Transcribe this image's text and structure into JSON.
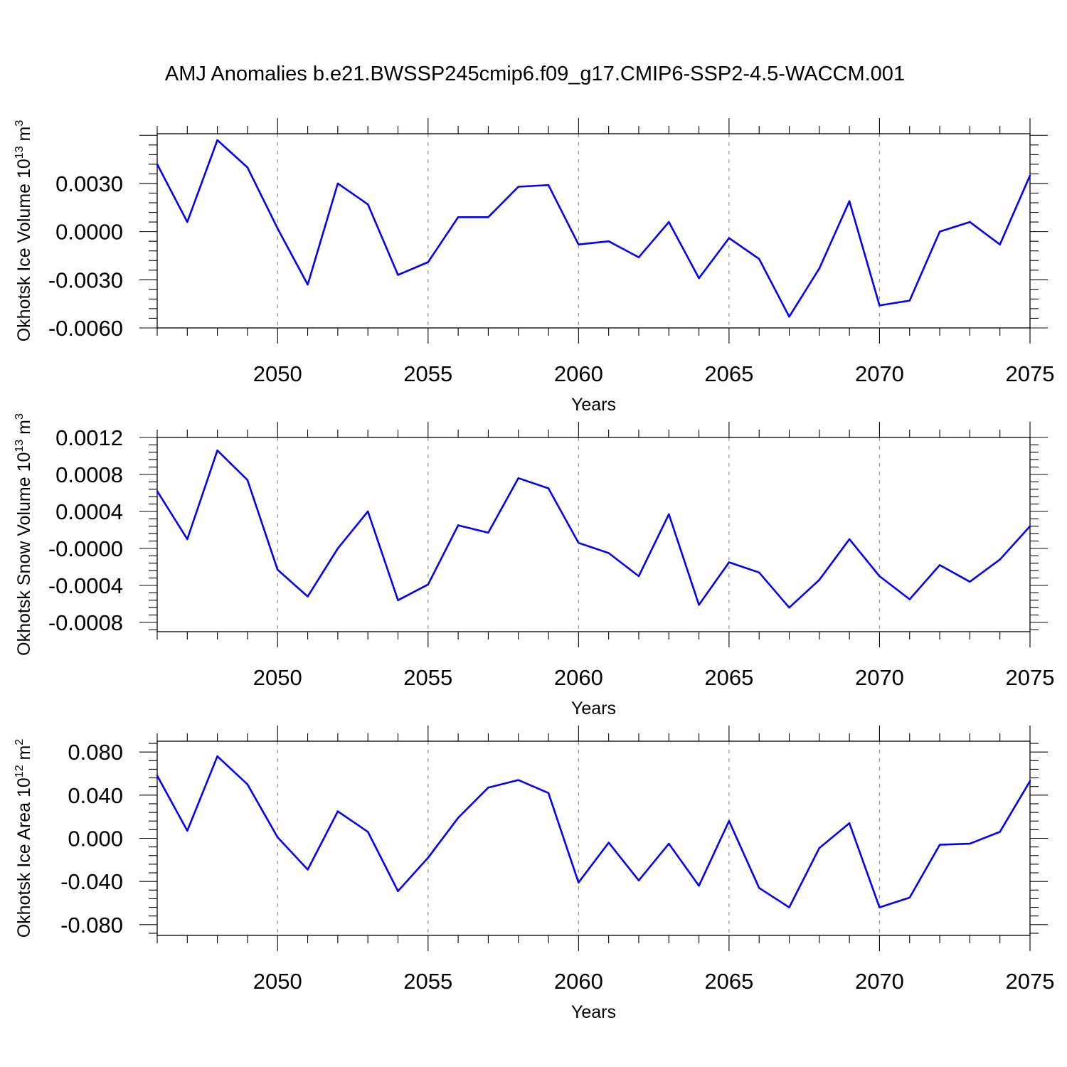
{
  "title": "AMJ Anomalies b.e21.BWSSP245cmip6.f09_g17.CMIP6-SSP2-4.5-WACCM.001",
  "line_color": "#0000ff",
  "grid_color": "#999999",
  "chart_data": [
    {
      "type": "line",
      "ylabel_main": "Okhotsk Ice Volume 10",
      "ylabel_exp": "13",
      "ylabel_unit": " m",
      "ylabel_unit_exp": "3",
      "xlabel": "Years",
      "xlim": [
        2046,
        2075
      ],
      "ylim": [
        -0.006,
        0.0061
      ],
      "yticks": [
        -0.006,
        -0.003,
        0.0,
        0.003
      ],
      "ytick_labels": [
        "-0.0060",
        "-0.0030",
        "0.0000",
        "0.0030"
      ],
      "xticks": [
        2050,
        2055,
        2060,
        2065,
        2070,
        2075
      ],
      "xtick_labels": [
        "2050",
        "2055",
        "2060",
        "2065",
        "2070",
        "2075"
      ],
      "x": [
        2046,
        2047,
        2048,
        2049,
        2050,
        2051,
        2052,
        2053,
        2054,
        2055,
        2056,
        2057,
        2058,
        2059,
        2060,
        2061,
        2062,
        2063,
        2064,
        2065,
        2066,
        2067,
        2068,
        2069,
        2070,
        2071,
        2072,
        2073,
        2074,
        2075
      ],
      "values": [
        0.0042,
        0.0006,
        0.0057,
        0.004,
        0.0002,
        -0.0033,
        0.003,
        0.0017,
        -0.0027,
        -0.0019,
        0.0009,
        0.0009,
        0.0028,
        0.0029,
        -0.0008,
        -0.0006,
        -0.0016,
        0.0006,
        -0.0029,
        -0.0004,
        -0.0017,
        -0.0053,
        -0.0023,
        0.0019,
        -0.0046,
        -0.0043,
        0.0,
        0.0006,
        -0.0008,
        0.0035
      ]
    },
    {
      "type": "line",
      "ylabel_main": "Okhotsk Snow Volume 10",
      "ylabel_exp": "13",
      "ylabel_unit": " m",
      "ylabel_unit_exp": "3",
      "xlabel": "Years",
      "xlim": [
        2046,
        2075
      ],
      "ylim": [
        -0.0009,
        0.0012
      ],
      "yticks": [
        -0.0008,
        -0.0004,
        0.0,
        0.0004,
        0.0008,
        0.0012
      ],
      "ytick_labels": [
        "-0.0008",
        "-0.0004",
        "-0.0000",
        "0.0004",
        "0.0008",
        "0.0012"
      ],
      "xticks": [
        2050,
        2055,
        2060,
        2065,
        2070,
        2075
      ],
      "xtick_labels": [
        "2050",
        "2055",
        "2060",
        "2065",
        "2070",
        "2075"
      ],
      "x": [
        2046,
        2047,
        2048,
        2049,
        2050,
        2051,
        2052,
        2053,
        2054,
        2055,
        2056,
        2057,
        2058,
        2059,
        2060,
        2061,
        2062,
        2063,
        2064,
        2065,
        2066,
        2067,
        2068,
        2069,
        2070,
        2071,
        2072,
        2073,
        2074,
        2075
      ],
      "values": [
        0.00062,
        0.0001,
        0.00106,
        0.00074,
        -0.00023,
        -0.00052,
        0.0,
        0.0004,
        -0.00056,
        -0.00039,
        0.00025,
        0.00017,
        0.00076,
        0.00065,
        6e-05,
        -5e-05,
        -0.0003,
        0.00037,
        -0.00061,
        -0.00015,
        -0.00026,
        -0.00064,
        -0.00034,
        0.0001,
        -0.0003,
        -0.00055,
        -0.00018,
        -0.00036,
        -0.00012,
        0.00024
      ]
    },
    {
      "type": "line",
      "ylabel_main": "Okhotsk Ice Area 10",
      "ylabel_exp": "12",
      "ylabel_unit": " m",
      "ylabel_unit_exp": "2",
      "xlabel": "Years",
      "xlim": [
        2046,
        2075
      ],
      "ylim": [
        -0.09,
        0.09
      ],
      "yticks": [
        -0.08,
        -0.04,
        0.0,
        0.04,
        0.08
      ],
      "ytick_labels": [
        "-0.080",
        "-0.040",
        "0.000",
        "0.040",
        "0.080"
      ],
      "xticks": [
        2050,
        2055,
        2060,
        2065,
        2070,
        2075
      ],
      "xtick_labels": [
        "2050",
        "2055",
        "2060",
        "2065",
        "2070",
        "2075"
      ],
      "x": [
        2046,
        2047,
        2048,
        2049,
        2050,
        2051,
        2052,
        2053,
        2054,
        2055,
        2056,
        2057,
        2058,
        2059,
        2060,
        2061,
        2062,
        2063,
        2064,
        2065,
        2066,
        2067,
        2068,
        2069,
        2070,
        2071,
        2072,
        2073,
        2074,
        2075
      ],
      "values": [
        0.058,
        0.007,
        0.076,
        0.05,
        0.001,
        -0.029,
        0.025,
        0.006,
        -0.049,
        -0.018,
        0.019,
        0.047,
        0.054,
        0.042,
        -0.041,
        -0.004,
        -0.039,
        -0.005,
        -0.044,
        0.016,
        -0.046,
        -0.064,
        -0.009,
        0.014,
        -0.064,
        -0.055,
        -0.006,
        -0.005,
        0.006,
        0.053
      ]
    }
  ]
}
